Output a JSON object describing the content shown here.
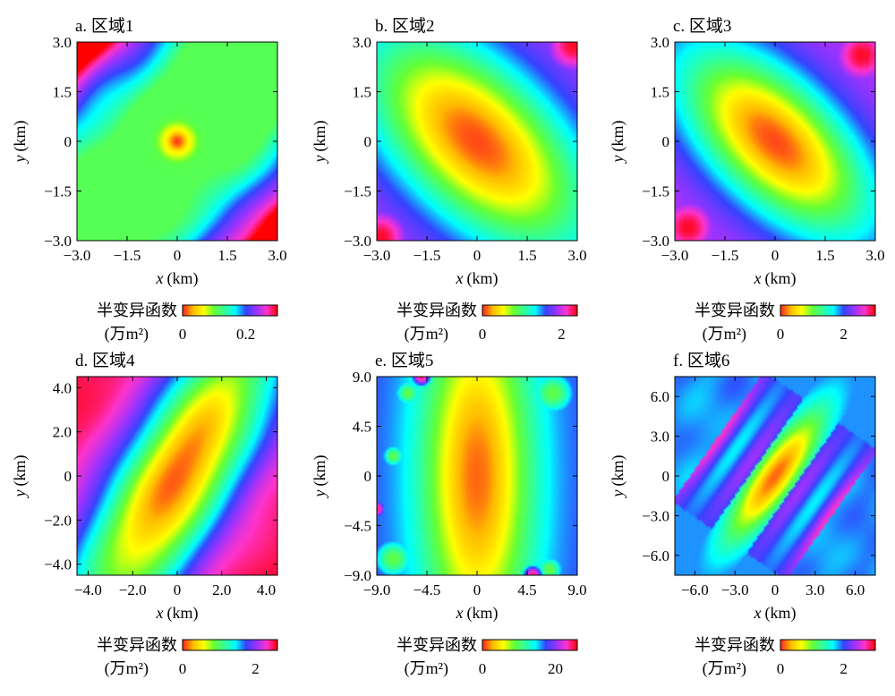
{
  "chart_data": [
    {
      "panel_label": "a. 区域1",
      "type": "heatmap",
      "xlabel_var": "x",
      "ylabel_var": "y",
      "unit_label": "(km)",
      "xlim": [
        -3.0,
        3.0
      ],
      "ylim": [
        -3.0,
        3.0
      ],
      "xticks": [
        "−3.0",
        "−1.5",
        "0",
        "1.5",
        "3.0"
      ],
      "yticks": [
        "−3.0",
        "−1.5",
        "0",
        "1.5",
        "3.0"
      ],
      "xtick_values": [
        -3.0,
        -1.5,
        0,
        1.5,
        3.0
      ],
      "ytick_values": [
        -3.0,
        -1.5,
        0,
        1.5,
        3.0
      ],
      "colorbar": {
        "label_line1": "半变异函数",
        "label_line2": "(万m²)",
        "range": [
          0,
          0.3
        ],
        "ticks": [
          "0",
          "0.2"
        ],
        "tick_values": [
          0,
          0.2
        ]
      },
      "field": {
        "major_axis_deg": 135,
        "center_radius": 0.35,
        "high_regions": [
          [
            -2.4,
            2.4
          ],
          [
            2.3,
            -2.4
          ]
        ]
      }
    },
    {
      "panel_label": "b. 区域2",
      "type": "heatmap",
      "xlabel_var": "x",
      "ylabel_var": "y",
      "unit_label": "(km)",
      "xlim": [
        -3.0,
        3.0
      ],
      "ylim": [
        -3.0,
        3.0
      ],
      "xticks": [
        "−3.0",
        "−1.5",
        "0",
        "1.5",
        "3.0"
      ],
      "yticks": [
        "−3.0",
        "−1.5",
        "0",
        "1.5",
        "3.0"
      ],
      "xtick_values": [
        -3.0,
        -1.5,
        0,
        1.5,
        3.0
      ],
      "ytick_values": [
        -3.0,
        -1.5,
        0,
        1.5,
        3.0
      ],
      "colorbar": {
        "label_line1": "半变异函数",
        "label_line2": "(万m²)",
        "range": [
          0,
          2.4
        ],
        "ticks": [
          "0",
          "2"
        ],
        "tick_values": [
          0,
          2
        ]
      },
      "field": {
        "major_axis_deg": 135,
        "range_major": 4.2,
        "range_minor": 2.2,
        "high_regions": [
          [
            2.9,
            2.9
          ],
          [
            -2.9,
            -2.9
          ]
        ]
      }
    },
    {
      "panel_label": "c. 区域3",
      "type": "heatmap",
      "xlabel_var": "x",
      "ylabel_var": "y",
      "unit_label": "(km)",
      "xlim": [
        -3.0,
        3.0
      ],
      "ylim": [
        -3.0,
        3.0
      ],
      "xticks": [
        "−3.0",
        "−1.5",
        "0",
        "1.5",
        "3.0"
      ],
      "yticks": [
        "−3.0",
        "−1.5",
        "0",
        "1.5",
        "3.0"
      ],
      "xtick_values": [
        -3.0,
        -1.5,
        0,
        1.5,
        3.0
      ],
      "ytick_values": [
        -3.0,
        -1.5,
        0,
        1.5,
        3.0
      ],
      "colorbar": {
        "label_line1": "半变异函数",
        "label_line2": "(万m²)",
        "range": [
          0,
          3.0
        ],
        "ticks": [
          "0",
          "2"
        ],
        "tick_values": [
          0,
          2
        ]
      },
      "field": {
        "major_axis_deg": 135,
        "range_major": 3.6,
        "range_minor": 1.8,
        "high_regions": [
          [
            2.6,
            2.6
          ],
          [
            -2.6,
            -2.6
          ]
        ]
      }
    },
    {
      "panel_label": "d. 区域4",
      "type": "heatmap",
      "xlabel_var": "x",
      "ylabel_var": "y",
      "unit_label": "(km)",
      "xlim": [
        -4.5,
        4.5
      ],
      "ylim": [
        -4.5,
        4.5
      ],
      "xticks": [
        "−4.0",
        "−2.0",
        "0",
        "2.0",
        "4.0"
      ],
      "yticks": [
        "−4.0",
        "−2.0",
        "0",
        "2.0",
        "4.0"
      ],
      "xtick_values": [
        -4.0,
        -2.0,
        0,
        2.0,
        4.0
      ],
      "ytick_values": [
        -4.0,
        -2.0,
        0,
        2.0,
        4.0
      ],
      "colorbar": {
        "label_line1": "半变异函数",
        "label_line2": "(万m²)",
        "range": [
          0,
          2.6
        ],
        "ticks": [
          "0",
          "2"
        ],
        "tick_values": [
          0,
          2
        ]
      },
      "field": {
        "major_axis_deg": 60,
        "range_major": 9,
        "range_minor": 2.6,
        "high_regions": [
          [
            -4.3,
            0.5
          ],
          [
            4.3,
            -0.5
          ]
        ]
      }
    },
    {
      "panel_label": "e. 区域5",
      "type": "heatmap",
      "xlabel_var": "x",
      "ylabel_var": "y",
      "unit_label": "(km)",
      "xlim": [
        -9.0,
        9.0
      ],
      "ylim": [
        -9.0,
        9.0
      ],
      "xticks": [
        "−9.0",
        "−4.5",
        "0",
        "4.5",
        "9.0"
      ],
      "yticks": [
        "−9.0",
        "−4.5",
        "0",
        "4.5",
        "9.0"
      ],
      "xtick_values": [
        -9.0,
        -4.5,
        0,
        4.5,
        9.0
      ],
      "ytick_values": [
        -9.0,
        -4.5,
        0,
        4.5,
        9.0
      ],
      "colorbar": {
        "label_line1": "半变异函数",
        "label_line2": "(万m²)",
        "range": [
          0,
          26
        ],
        "ticks": [
          "0",
          "20"
        ],
        "tick_values": [
          0,
          20
        ]
      },
      "field": {
        "major_axis_deg": 90,
        "range_major": 18,
        "range_minor": 5,
        "high_regions": [
          [
            -5,
            9
          ],
          [
            5,
            -9
          ]
        ]
      }
    },
    {
      "panel_label": "f. 区域6",
      "type": "heatmap",
      "xlabel_var": "x",
      "ylabel_var": "y",
      "unit_label": "(km)",
      "xlim": [
        -7.5,
        7.5
      ],
      "ylim": [
        -7.5,
        7.5
      ],
      "xticks": [
        "−6.0",
        "−3.0",
        "0",
        "3.0",
        "6.0"
      ],
      "yticks": [
        "−6.0",
        "−3.0",
        "0",
        "3.0",
        "6.0"
      ],
      "xtick_values": [
        -6.0,
        -3.0,
        0,
        3.0,
        6.0
      ],
      "ytick_values": [
        -6.0,
        -3.0,
        0,
        3.0,
        6.0
      ],
      "colorbar": {
        "label_line1": "半变异函数",
        "label_line2": "(万m²)",
        "range": [
          0,
          3.0
        ],
        "ticks": [
          "0",
          "2"
        ],
        "tick_values": [
          0,
          2
        ]
      },
      "field": {
        "major_axis_deg": 55,
        "range_major": 6,
        "range_minor": 1.6,
        "high_regions": [
          [
            -4.8,
            -0.5
          ],
          [
            4.8,
            0.5
          ]
        ]
      }
    }
  ],
  "colormap": [
    "#ff2020",
    "#ffbb00",
    "#ffff00",
    "#66ff33",
    "#33ff99",
    "#00ffff",
    "#3344ff",
    "#9933ff",
    "#ff33cc",
    "#ff0000"
  ]
}
